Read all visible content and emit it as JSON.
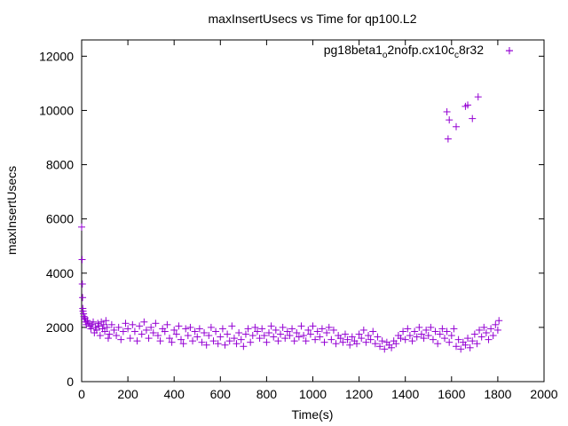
{
  "chart_data": {
    "type": "scatter",
    "title": "maxInsertUsecs vs Time for qp100.L2",
    "xlabel": "Time(s)",
    "ylabel": "maxInsertUsecs",
    "xlim": [
      0,
      2000
    ],
    "ylim": [
      0,
      12600
    ],
    "xticks": [
      0,
      200,
      400,
      600,
      800,
      1000,
      1200,
      1400,
      1600,
      1800,
      2000
    ],
    "yticks": [
      0,
      2000,
      4000,
      6000,
      8000,
      10000,
      12000
    ],
    "grid": false,
    "legend_position": "top-right",
    "marker": "plus",
    "color": "#9400d3",
    "series": [
      {
        "name_parts": {
          "a": "pg18beta1",
          "b": "o",
          "c": "2nofp.cx10c",
          "d": "c",
          "e": "8r32"
        },
        "points": [
          [
            0,
            5700
          ],
          [
            2,
            4500
          ],
          [
            3,
            3600
          ],
          [
            4,
            3100
          ],
          [
            5,
            2700
          ],
          [
            6,
            2600
          ],
          [
            8,
            2500
          ],
          [
            10,
            2400
          ],
          [
            12,
            2300
          ],
          [
            15,
            2350
          ],
          [
            18,
            2200
          ],
          [
            20,
            2100
          ],
          [
            25,
            2250
          ],
          [
            30,
            2150
          ],
          [
            35,
            2050
          ],
          [
            40,
            1950
          ],
          [
            45,
            2100
          ],
          [
            50,
            2200
          ],
          [
            55,
            1800
          ],
          [
            60,
            2000
          ],
          [
            65,
            1900
          ],
          [
            70,
            2150
          ],
          [
            75,
            2050
          ],
          [
            80,
            1700
          ],
          [
            85,
            2200
          ],
          [
            90,
            1950
          ],
          [
            95,
            2100
          ],
          [
            100,
            1850
          ],
          [
            105,
            2250
          ],
          [
            110,
            2000
          ],
          [
            115,
            1600
          ],
          [
            120,
            1750
          ],
          [
            130,
            2100
          ],
          [
            140,
            1900
          ],
          [
            150,
            1700
          ],
          [
            160,
            2000
          ],
          [
            170,
            1550
          ],
          [
            180,
            1850
          ],
          [
            190,
            2150
          ],
          [
            200,
            1950
          ],
          [
            210,
            1600
          ],
          [
            220,
            2100
          ],
          [
            230,
            1850
          ],
          [
            240,
            1500
          ],
          [
            250,
            2050
          ],
          [
            260,
            1750
          ],
          [
            270,
            2200
          ],
          [
            280,
            1900
          ],
          [
            290,
            1600
          ],
          [
            300,
            2000
          ],
          [
            310,
            1800
          ],
          [
            320,
            2150
          ],
          [
            330,
            1700
          ],
          [
            340,
            1500
          ],
          [
            350,
            1950
          ],
          [
            360,
            1850
          ],
          [
            370,
            2100
          ],
          [
            380,
            1600
          ],
          [
            390,
            1450
          ],
          [
            400,
            1900
          ],
          [
            410,
            1750
          ],
          [
            420,
            2050
          ],
          [
            430,
            1550
          ],
          [
            440,
            1400
          ],
          [
            450,
            1950
          ],
          [
            460,
            1700
          ],
          [
            470,
            2000
          ],
          [
            480,
            1500
          ],
          [
            490,
            1850
          ],
          [
            500,
            1650
          ],
          [
            510,
            1950
          ],
          [
            520,
            1450
          ],
          [
            530,
            1800
          ],
          [
            540,
            1350
          ],
          [
            550,
            1700
          ],
          [
            560,
            2000
          ],
          [
            570,
            1500
          ],
          [
            580,
            1850
          ],
          [
            590,
            1400
          ],
          [
            600,
            1650
          ],
          [
            610,
            1950
          ],
          [
            620,
            1350
          ],
          [
            630,
            1750
          ],
          [
            640,
            1500
          ],
          [
            650,
            2050
          ],
          [
            660,
            1600
          ],
          [
            670,
            1400
          ],
          [
            680,
            1800
          ],
          [
            690,
            1550
          ],
          [
            700,
            1300
          ],
          [
            710,
            1750
          ],
          [
            720,
            1950
          ],
          [
            730,
            1450
          ],
          [
            740,
            1700
          ],
          [
            750,
            2000
          ],
          [
            760,
            1850
          ],
          [
            770,
            1600
          ],
          [
            780,
            1950
          ],
          [
            790,
            1700
          ],
          [
            800,
            1450
          ],
          [
            810,
            1800
          ],
          [
            820,
            2050
          ],
          [
            830,
            1650
          ],
          [
            840,
            1900
          ],
          [
            850,
            1500
          ],
          [
            860,
            1750
          ],
          [
            870,
            2000
          ],
          [
            880,
            1600
          ],
          [
            890,
            1850
          ],
          [
            900,
            1700
          ],
          [
            910,
            1950
          ],
          [
            920,
            1500
          ],
          [
            930,
            1800
          ],
          [
            940,
            1650
          ],
          [
            950,
            2050
          ],
          [
            960,
            1700
          ],
          [
            970,
            1500
          ],
          [
            980,
            1900
          ],
          [
            990,
            1750
          ],
          [
            1000,
            2050
          ],
          [
            1010,
            1550
          ],
          [
            1020,
            1850
          ],
          [
            1030,
            1650
          ],
          [
            1040,
            1950
          ],
          [
            1050,
            1450
          ],
          [
            1060,
            1800
          ],
          [
            1070,
            2000
          ],
          [
            1080,
            1550
          ],
          [
            1090,
            1900
          ],
          [
            1100,
            1400
          ],
          [
            1110,
            1700
          ],
          [
            1120,
            1600
          ],
          [
            1130,
            1450
          ],
          [
            1140,
            1750
          ],
          [
            1150,
            1550
          ],
          [
            1160,
            1350
          ],
          [
            1170,
            1650
          ],
          [
            1180,
            1500
          ],
          [
            1190,
            1400
          ],
          [
            1200,
            1750
          ],
          [
            1210,
            1600
          ],
          [
            1220,
            1900
          ],
          [
            1230,
            1450
          ],
          [
            1240,
            1700
          ],
          [
            1250,
            1550
          ],
          [
            1260,
            1850
          ],
          [
            1270,
            1400
          ],
          [
            1280,
            1650
          ],
          [
            1290,
            1300
          ],
          [
            1300,
            1500
          ],
          [
            1310,
            1200
          ],
          [
            1320,
            1450
          ],
          [
            1330,
            1350
          ],
          [
            1340,
            1250
          ],
          [
            1350,
            1500
          ],
          [
            1360,
            1400
          ],
          [
            1370,
            1700
          ],
          [
            1380,
            1600
          ],
          [
            1390,
            1850
          ],
          [
            1400,
            1550
          ],
          [
            1410,
            1950
          ],
          [
            1420,
            1700
          ],
          [
            1430,
            1500
          ],
          [
            1440,
            1850
          ],
          [
            1450,
            1650
          ],
          [
            1460,
            2000
          ],
          [
            1470,
            1750
          ],
          [
            1480,
            1600
          ],
          [
            1490,
            1900
          ],
          [
            1500,
            1700
          ],
          [
            1510,
            2000
          ],
          [
            1520,
            1550
          ],
          [
            1530,
            1850
          ],
          [
            1540,
            1400
          ],
          [
            1550,
            1750
          ],
          [
            1560,
            1950
          ],
          [
            1570,
            1600
          ],
          [
            1580,
            1850
          ],
          [
            1590,
            1450
          ],
          [
            1600,
            1700
          ],
          [
            1610,
            1950
          ],
          [
            1620,
            1300
          ],
          [
            1630,
            1550
          ],
          [
            1640,
            1200
          ],
          [
            1650,
            1450
          ],
          [
            1660,
            1350
          ],
          [
            1670,
            1600
          ],
          [
            1680,
            1250
          ],
          [
            1690,
            1500
          ],
          [
            1700,
            1750
          ],
          [
            1710,
            1400
          ],
          [
            1720,
            1900
          ],
          [
            1730,
            1650
          ],
          [
            1740,
            2000
          ],
          [
            1750,
            1800
          ],
          [
            1760,
            1550
          ],
          [
            1770,
            1950
          ],
          [
            1780,
            1700
          ],
          [
            1790,
            2100
          ],
          [
            1800,
            1900
          ],
          [
            1805,
            2250
          ],
          [
            1580,
            9950
          ],
          [
            1585,
            8950
          ],
          [
            1590,
            9650
          ],
          [
            1620,
            9400
          ],
          [
            1660,
            10150
          ],
          [
            1670,
            10200
          ],
          [
            1690,
            9700
          ],
          [
            1715,
            10500
          ],
          [
            1850,
            12200
          ]
        ]
      }
    ]
  }
}
